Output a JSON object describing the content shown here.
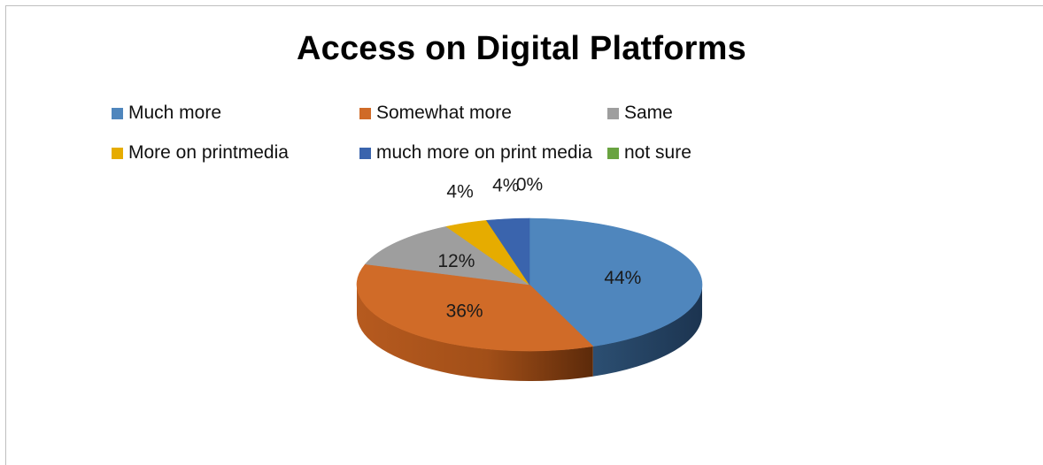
{
  "chart_data": {
    "type": "pie",
    "title": "Access on Digital Platforms",
    "legend_position": "top",
    "categories": [
      "Much more",
      "Somewhat more",
      "Same",
      "More on printmedia",
      "much more on print media",
      "not sure"
    ],
    "values": [
      44,
      36,
      12,
      4,
      4,
      0
    ],
    "data_labels": [
      "44%",
      "36%",
      "12%",
      "4%",
      "4%",
      "0%"
    ],
    "colors": [
      "#4f86bd",
      "#d06b28",
      "#9e9e9e",
      "#e6ac00",
      "#3a64ad",
      "#69a340"
    ]
  }
}
